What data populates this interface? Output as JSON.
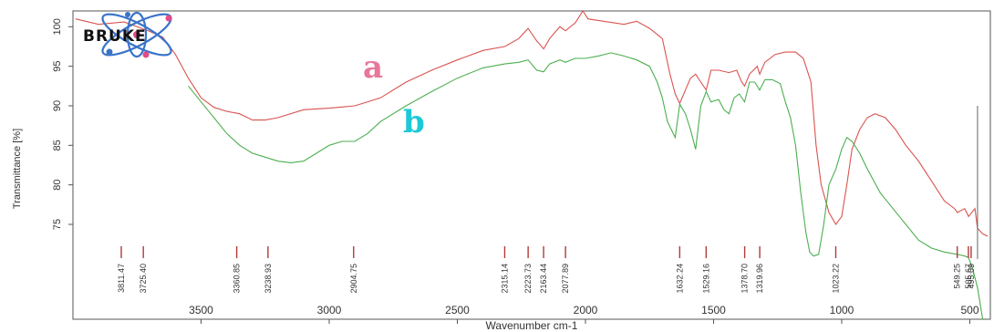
{
  "logo": {
    "text": "BRUKE"
  },
  "chart_data": {
    "type": "line",
    "xlabel": "Wavenumber cm-1",
    "ylabel": "Transmittance [%]",
    "xlim": [
      4000,
      420
    ],
    "ylim": [
      63,
      102
    ],
    "x_ticks": [
      3500,
      3000,
      2500,
      2000,
      1500,
      1000,
      500
    ],
    "y_ticks": [
      75,
      80,
      85,
      90,
      95,
      100
    ],
    "grid": false,
    "series": [
      {
        "name": "a",
        "color": "#d9534f",
        "label_color": "#e8779a",
        "points": [
          [
            3990,
            101
          ],
          [
            3900,
            100.3
          ],
          [
            3800,
            100.6
          ],
          [
            3700,
            99.4
          ],
          [
            3650,
            98.7
          ],
          [
            3600,
            96.5
          ],
          [
            3550,
            93.5
          ],
          [
            3500,
            91
          ],
          [
            3450,
            89.8
          ],
          [
            3400,
            89.3
          ],
          [
            3350,
            89
          ],
          [
            3300,
            88.2
          ],
          [
            3250,
            88.2
          ],
          [
            3200,
            88.5
          ],
          [
            3100,
            89.5
          ],
          [
            3000,
            89.7
          ],
          [
            2900,
            90
          ],
          [
            2800,
            91
          ],
          [
            2700,
            93
          ],
          [
            2600,
            94.5
          ],
          [
            2500,
            95.8
          ],
          [
            2400,
            97
          ],
          [
            2315,
            97.5
          ],
          [
            2260,
            98.5
          ],
          [
            2224,
            99.8
          ],
          [
            2190,
            98.2
          ],
          [
            2163,
            97.2
          ],
          [
            2140,
            98.5
          ],
          [
            2100,
            100
          ],
          [
            2078,
            99.5
          ],
          [
            2040,
            100.5
          ],
          [
            2010,
            102
          ],
          [
            1990,
            101
          ],
          [
            1950,
            100.8
          ],
          [
            1850,
            100.3
          ],
          [
            1800,
            100.7
          ],
          [
            1750,
            99.8
          ],
          [
            1700,
            98.5
          ],
          [
            1670,
            94
          ],
          [
            1650,
            91.5
          ],
          [
            1632,
            90.3
          ],
          [
            1610,
            92
          ],
          [
            1590,
            93.5
          ],
          [
            1570,
            94
          ],
          [
            1550,
            93
          ],
          [
            1529,
            92
          ],
          [
            1510,
            94.5
          ],
          [
            1480,
            94.5
          ],
          [
            1440,
            94.2
          ],
          [
            1410,
            94.5
          ],
          [
            1390,
            93
          ],
          [
            1379,
            92.5
          ],
          [
            1360,
            94
          ],
          [
            1330,
            95
          ],
          [
            1320,
            94
          ],
          [
            1300,
            95.5
          ],
          [
            1260,
            96.5
          ],
          [
            1220,
            96.8
          ],
          [
            1180,
            96.8
          ],
          [
            1150,
            96
          ],
          [
            1120,
            93
          ],
          [
            1100,
            85
          ],
          [
            1080,
            80
          ],
          [
            1050,
            76.5
          ],
          [
            1023,
            75
          ],
          [
            1000,
            76
          ],
          [
            980,
            80
          ],
          [
            960,
            84.5
          ],
          [
            930,
            87
          ],
          [
            900,
            88.5
          ],
          [
            870,
            89
          ],
          [
            830,
            88.5
          ],
          [
            790,
            87
          ],
          [
            750,
            85
          ],
          [
            700,
            83
          ],
          [
            650,
            80.5
          ],
          [
            600,
            78
          ],
          [
            560,
            77
          ],
          [
            549,
            76.5
          ],
          [
            520,
            77
          ],
          [
            505,
            76
          ],
          [
            480,
            77
          ],
          [
            470,
            74.5
          ],
          [
            450,
            73.8
          ],
          [
            430,
            73.5
          ]
        ]
      },
      {
        "name": "b",
        "color": "#4caf50",
        "label_color": "#1ec9d6",
        "points": [
          [
            3550,
            92.5
          ],
          [
            3500,
            90.5
          ],
          [
            3450,
            88.5
          ],
          [
            3400,
            86.5
          ],
          [
            3350,
            85
          ],
          [
            3300,
            84
          ],
          [
            3250,
            83.5
          ],
          [
            3200,
            83
          ],
          [
            3150,
            82.8
          ],
          [
            3100,
            83
          ],
          [
            3050,
            84
          ],
          [
            3000,
            85
          ],
          [
            2950,
            85.5
          ],
          [
            2900,
            85.5
          ],
          [
            2850,
            86.5
          ],
          [
            2800,
            88
          ],
          [
            2700,
            90
          ],
          [
            2600,
            91.8
          ],
          [
            2500,
            93.5
          ],
          [
            2400,
            94.8
          ],
          [
            2315,
            95.3
          ],
          [
            2260,
            95.5
          ],
          [
            2224,
            95.8
          ],
          [
            2190,
            94.5
          ],
          [
            2163,
            94.3
          ],
          [
            2140,
            95.3
          ],
          [
            2100,
            95.8
          ],
          [
            2078,
            95.5
          ],
          [
            2040,
            96
          ],
          [
            2000,
            96
          ],
          [
            1950,
            96.3
          ],
          [
            1900,
            96.7
          ],
          [
            1850,
            96.3
          ],
          [
            1800,
            95.8
          ],
          [
            1750,
            95
          ],
          [
            1720,
            93
          ],
          [
            1700,
            91
          ],
          [
            1680,
            88
          ],
          [
            1650,
            86
          ],
          [
            1632,
            90.2
          ],
          [
            1610,
            89
          ],
          [
            1590,
            87
          ],
          [
            1570,
            84.5
          ],
          [
            1550,
            90
          ],
          [
            1529,
            91.8
          ],
          [
            1510,
            90.5
          ],
          [
            1480,
            90.8
          ],
          [
            1460,
            89.5
          ],
          [
            1440,
            89
          ],
          [
            1420,
            91
          ],
          [
            1400,
            91.5
          ],
          [
            1379,
            90.5
          ],
          [
            1360,
            93
          ],
          [
            1340,
            93
          ],
          [
            1320,
            92
          ],
          [
            1300,
            93.3
          ],
          [
            1270,
            93.3
          ],
          [
            1240,
            92.8
          ],
          [
            1220,
            90.5
          ],
          [
            1200,
            88.5
          ],
          [
            1180,
            85
          ],
          [
            1160,
            79
          ],
          [
            1140,
            74
          ],
          [
            1125,
            71.5
          ],
          [
            1110,
            71
          ],
          [
            1090,
            71.2
          ],
          [
            1070,
            75
          ],
          [
            1050,
            80
          ],
          [
            1023,
            82
          ],
          [
            1000,
            84.5
          ],
          [
            980,
            86
          ],
          [
            960,
            85.5
          ],
          [
            930,
            84
          ],
          [
            900,
            82
          ],
          [
            850,
            79
          ],
          [
            800,
            77
          ],
          [
            750,
            75
          ],
          [
            700,
            73
          ],
          [
            650,
            72
          ],
          [
            600,
            71.5
          ],
          [
            549,
            71.2
          ],
          [
            520,
            71
          ],
          [
            505,
            70.8
          ],
          [
            490,
            69.5
          ],
          [
            470,
            67
          ],
          [
            450,
            63
          ]
        ]
      }
    ],
    "peak_labels": [
      "3811.47",
      "3725.40",
      "3360.85",
      "3238.93",
      "2904.75",
      "2315.14",
      "2223.73",
      "2163.44",
      "2077.89",
      "1632.24",
      "1529.16",
      "1378.70",
      "1319.96",
      "1023.22",
      "549.25",
      "505.67",
      "495.09"
    ]
  }
}
